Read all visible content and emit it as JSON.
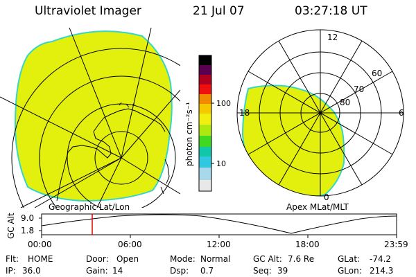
{
  "header": {
    "title": "Ultraviolet Imager",
    "date": "21 Jul 07",
    "time": "03:27:18 UT"
  },
  "left_map": {
    "label": "Geographic Lat/Lon"
  },
  "right_map": {
    "label": "Apex MLat/MLT",
    "mlt_labels": [
      "12",
      "18",
      "6",
      "0"
    ],
    "lat_labels": [
      "60",
      "70",
      "80"
    ]
  },
  "colorbar": {
    "unit_label": "photon cm⁻²s⁻¹",
    "tick_labels": [
      "100",
      "10"
    ]
  },
  "timeline": {
    "ylabel": "GC Alt",
    "y_ticks": [
      "9.0",
      "1.8"
    ],
    "x_ticks": [
      "00:00",
      "06:00",
      "12:00",
      "18:00",
      "23:59"
    ]
  },
  "info": {
    "row1": [
      {
        "key": "Flt:",
        "value": "HOME"
      },
      {
        "key": "Door:",
        "value": "Open"
      },
      {
        "key": "Mode:",
        "value": "Normal"
      },
      {
        "key": "GC Alt:",
        "value": "7.6 Re"
      },
      {
        "key": "GLat:",
        "value": "-74.2"
      }
    ],
    "row2": [
      {
        "key": "IP:",
        "value": "36.0"
      },
      {
        "key": "Gain:",
        "value": "14"
      },
      {
        "key": "Dsp:",
        "value": "0.7"
      },
      {
        "key": "Seq:",
        "value": "39"
      },
      {
        "key": "GLon:",
        "value": "214.3"
      }
    ]
  },
  "colors": {
    "emission": "#e3ef0d",
    "edge": "#35d6c8"
  }
}
